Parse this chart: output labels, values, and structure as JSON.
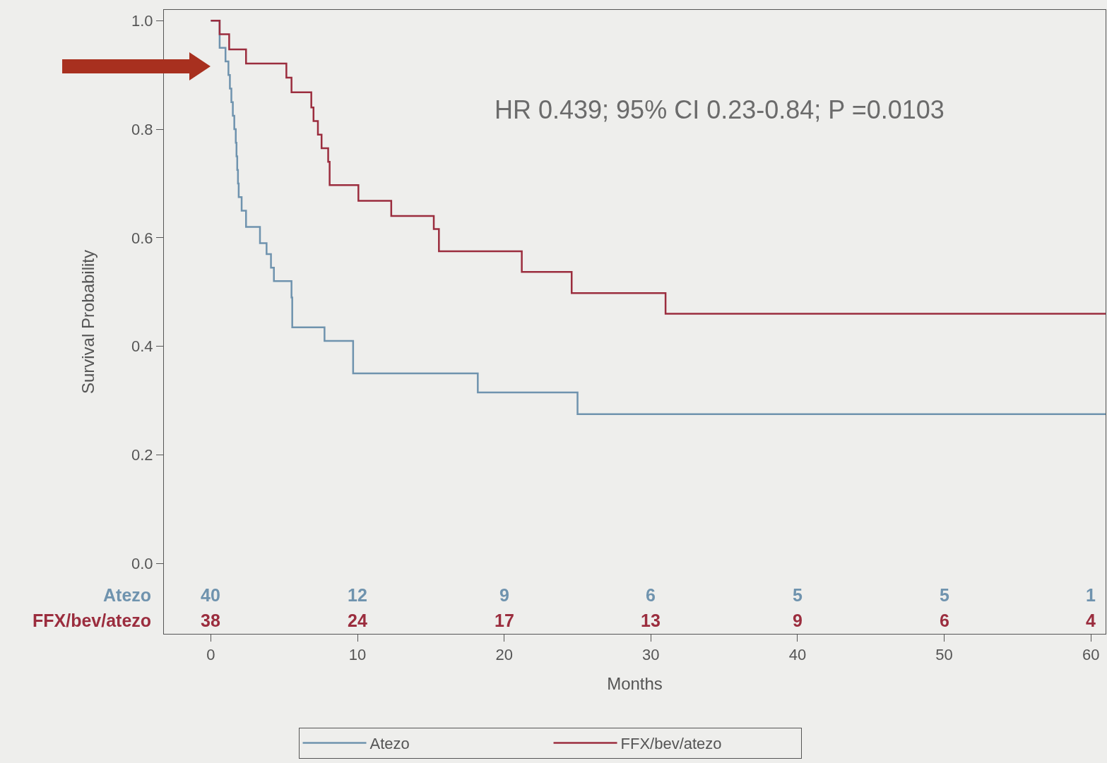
{
  "chart_data": {
    "type": "step",
    "xlabel": "Months",
    "ylabel": "Survival Probability",
    "xlim": [
      -3.2,
      61
    ],
    "xticks": [
      0,
      10,
      20,
      30,
      40,
      50,
      60
    ],
    "ylim": [
      -0.13,
      1.02
    ],
    "yticks": [
      {
        "value": 0,
        "label": "0.0"
      },
      {
        "value": 0.2,
        "label": "0.2"
      },
      {
        "value": 0.4,
        "label": "0.4"
      },
      {
        "value": 0.6,
        "label": "0.6"
      },
      {
        "value": 0.8,
        "label": "0.8"
      },
      {
        "value": 1,
        "label": "1.0"
      }
    ],
    "grid": false,
    "legend": "bottom",
    "marker": "none",
    "line_style": "solid",
    "series": [
      {
        "name": "Atezo",
        "color": "#6f93ae",
        "x": [
          0,
          0.6,
          1.0,
          1.2,
          1.3,
          1.4,
          1.5,
          1.6,
          1.7,
          1.75,
          1.8,
          1.85,
          1.9,
          2.1,
          2.4,
          3.35,
          3.8,
          4.1,
          4.3,
          5.5,
          5.55,
          7.75,
          9.7,
          18.2,
          25.0,
          61
        ],
        "values": [
          1.0,
          0.95,
          0.925,
          0.9,
          0.875,
          0.85,
          0.825,
          0.8,
          0.775,
          0.75,
          0.725,
          0.7,
          0.675,
          0.65,
          0.62,
          0.59,
          0.57,
          0.545,
          0.52,
          0.49,
          0.435,
          0.41,
          0.35,
          0.315,
          0.275,
          0.275
        ]
      },
      {
        "name": "FFX/bev/atezo",
        "color": "#9b2d3e",
        "x": [
          0,
          0.6,
          1.25,
          2.4,
          5.15,
          5.5,
          6.85,
          7.0,
          7.3,
          7.55,
          8.0,
          8.1,
          10.06,
          12.3,
          15.2,
          15.55,
          21.2,
          24.6,
          31.0,
          61
        ],
        "values": [
          1.0,
          0.975,
          0.947,
          0.921,
          0.895,
          0.868,
          0.84,
          0.815,
          0.79,
          0.765,
          0.74,
          0.697,
          0.668,
          0.64,
          0.616,
          0.575,
          0.537,
          0.498,
          0.46,
          0.46
        ]
      }
    ],
    "annotations": [
      "HR 0.439; 95% CI 0.23-0.84; P =0.0103",
      "Atezo",
      "40",
      "12",
      "9",
      "6",
      "5",
      "5",
      "1",
      "FFX/bev/atezo",
      "38",
      "24",
      "17",
      "13",
      "9",
      "6",
      "4"
    ]
  }
}
